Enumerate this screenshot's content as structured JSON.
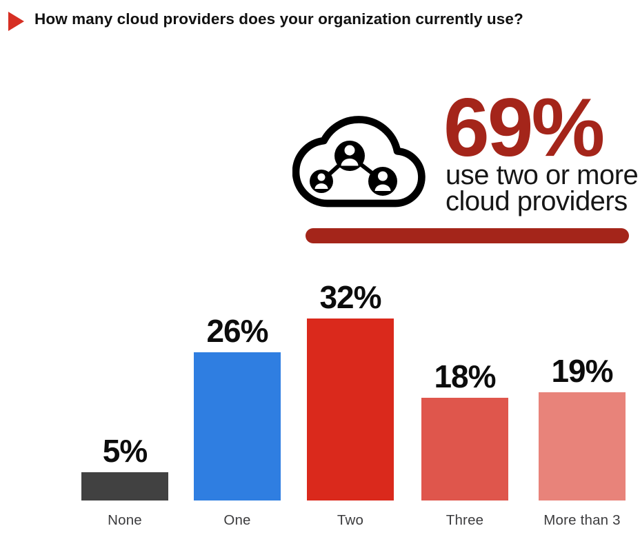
{
  "title": {
    "text": "How many cloud providers does your organization currently use?",
    "bullet_color": "#d62f23"
  },
  "callout": {
    "icon": "cloud-network-people-icon",
    "stat": "69%",
    "caption_line1": "use two or more",
    "caption_line2": "cloud providers",
    "stat_color": "#a4251a",
    "underline_color": "#a4251a"
  },
  "chart_data": {
    "type": "bar",
    "title": "How many cloud providers does your organization currently use?",
    "categories": [
      "None",
      "One",
      "Two",
      "Three",
      "More than 3"
    ],
    "values": [
      5,
      26,
      32,
      18,
      19
    ],
    "value_labels": [
      "5%",
      "26%",
      "32%",
      "18%",
      "19%"
    ],
    "bar_colors": [
      "#414141",
      "#2f7ee1",
      "#da291c",
      "#df564c",
      "#e8837a"
    ],
    "unit": "%",
    "xlabel": "",
    "ylabel": "",
    "ylim": [
      0,
      35
    ],
    "grid": false,
    "legend": false,
    "annotation": "69% use two or more cloud providers"
  }
}
